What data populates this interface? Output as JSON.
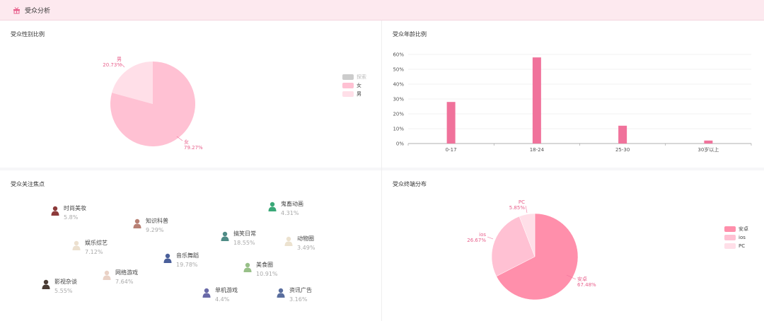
{
  "header": {
    "title": "受众分析",
    "icon": "gift-icon"
  },
  "colors": {
    "pink_dark": "#f0729b",
    "pink_main": "#ff8fab",
    "pink_mid": "#ffc1d3",
    "pink_light": "#ffdfe8",
    "legend_gray": "#cccccc"
  },
  "gender": {
    "title": "受众性别比例",
    "legend": [
      "探索",
      "女",
      "男"
    ],
    "slices": [
      {
        "name": "女",
        "pct": "79.27%",
        "value": 79.27
      },
      {
        "name": "男",
        "pct": "20.73%",
        "value": 20.73
      }
    ]
  },
  "age": {
    "title": "受众年龄比例",
    "y_ticks": [
      "60%",
      "50%",
      "40%",
      "30%",
      "20%",
      "10%",
      "0%"
    ],
    "chart_data": {
      "type": "bar",
      "categories": [
        "0-17",
        "18-24",
        "25-30",
        "30岁以上"
      ],
      "values": [
        28,
        58,
        12,
        2
      ],
      "ylim": [
        0,
        60
      ]
    }
  },
  "interests": {
    "title": "受众关注焦点",
    "items": [
      {
        "name": "时尚美妆",
        "pct": "5.8%",
        "color": "#8c3a3a"
      },
      {
        "name": "知识科普",
        "pct": "9.29%",
        "color": "#b88074"
      },
      {
        "name": "娱乐综艺",
        "pct": "7.12%",
        "color": "#ece0cf"
      },
      {
        "name": "鬼畜动画",
        "pct": "4.31%",
        "color": "#3aa878"
      },
      {
        "name": "搞笑日常",
        "pct": "18.55%",
        "color": "#4f8c86"
      },
      {
        "name": "动物圈",
        "pct": "3.49%",
        "color": "#ece2cf"
      },
      {
        "name": "音乐舞蹈",
        "pct": "19.78%",
        "color": "#4a5f9a"
      },
      {
        "name": "网络游戏",
        "pct": "7.64%",
        "color": "#ead2c6"
      },
      {
        "name": "美食圈",
        "pct": "10.91%",
        "color": "#98c088"
      },
      {
        "name": "影视杂谈",
        "pct": "5.55%",
        "color": "#4a3c34"
      },
      {
        "name": "单机游戏",
        "pct": "4.4%",
        "color": "#6a6aa8"
      },
      {
        "name": "资讯广告",
        "pct": "3.16%",
        "color": "#5a6e9e"
      }
    ]
  },
  "terminal": {
    "title": "受众终端分布",
    "legend": [
      "安卓",
      "ios",
      "PC"
    ],
    "slices": [
      {
        "name": "安卓",
        "pct": "67.48%",
        "value": 67.48
      },
      {
        "name": "ios",
        "pct": "26.67%",
        "value": 26.67
      },
      {
        "name": "PC",
        "pct": "5.85%",
        "value": 5.85
      }
    ]
  }
}
